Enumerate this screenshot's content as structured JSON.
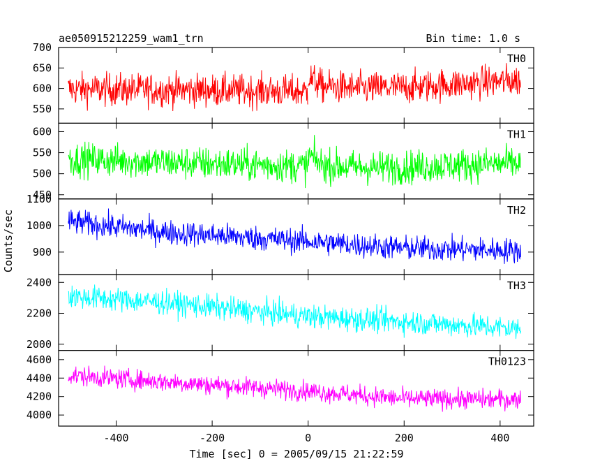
{
  "chart_data": {
    "type": "line",
    "title": "ae050915212259_wam1_trn",
    "subtitle": "Bin time: 1.0 s",
    "xlabel": "Time [sec] 0 = 2005/09/15 21:22:59",
    "ylabel": "Counts/sec",
    "xlim": [
      -520,
      470
    ],
    "x_range": [
      -500,
      443
    ],
    "x_ticks": [
      -400,
      -200,
      0,
      200,
      400
    ],
    "grid": false,
    "panels": [
      {
        "name": "TH0",
        "color": "#ff0000",
        "ylim": [
          515,
          700
        ],
        "y_ticks": [
          550,
          600,
          650,
          700
        ],
        "segments": [
          {
            "x": [
              -500,
              -250,
              0
            ],
            "y": [
              598,
              596,
              592
            ]
          },
          {
            "x": [
              0,
              30,
              100,
              200,
              300,
              443
            ],
            "y": [
              628,
              605,
              600,
              602,
              610,
              620
            ]
          }
        ],
        "noise": 28
      },
      {
        "name": "TH1",
        "color": "#00ff00",
        "ylim": [
          440,
          620
        ],
        "y_ticks": [
          450,
          500,
          550,
          600
        ],
        "segments": [
          {
            "x": [
              -500,
              -250,
              0
            ],
            "y": [
              535,
              525,
              518
            ]
          },
          {
            "x": [
              0,
              30,
              100,
              200,
              300,
              443
            ],
            "y": [
              545,
              520,
              515,
              515,
              520,
              525
            ]
          }
        ],
        "noise": 28
      },
      {
        "name": "TH2",
        "color": "#0000ff",
        "ylim": [
          815,
          1100
        ],
        "y_ticks": [
          900,
          1000,
          1100
        ],
        "segments": [
          {
            "x": [
              -500,
              -300,
              0,
              200,
              443
            ],
            "y": [
              1015,
              975,
              940,
              915,
              905
            ]
          }
        ],
        "noise": 33
      },
      {
        "name": "TH3",
        "color": "#00ffff",
        "ylim": [
          1960,
          2450
        ],
        "y_ticks": [
          2000,
          2200,
          2400
        ],
        "segments": [
          {
            "x": [
              -500,
              -300,
              0,
              200,
              443
            ],
            "y": [
              2310,
              2270,
              2180,
              2145,
              2100
            ]
          }
        ],
        "noise": 55
      },
      {
        "name": "TH0123",
        "color": "#ff00ff",
        "ylim": [
          3880,
          4700
        ],
        "y_ticks": [
          4000,
          4200,
          4400,
          4600
        ],
        "segments": [
          {
            "x": [
              -500,
              -300,
              0,
              200,
              443
            ],
            "y": [
              4430,
              4360,
              4260,
              4175,
              4170
            ]
          }
        ],
        "noise": 75
      }
    ]
  }
}
